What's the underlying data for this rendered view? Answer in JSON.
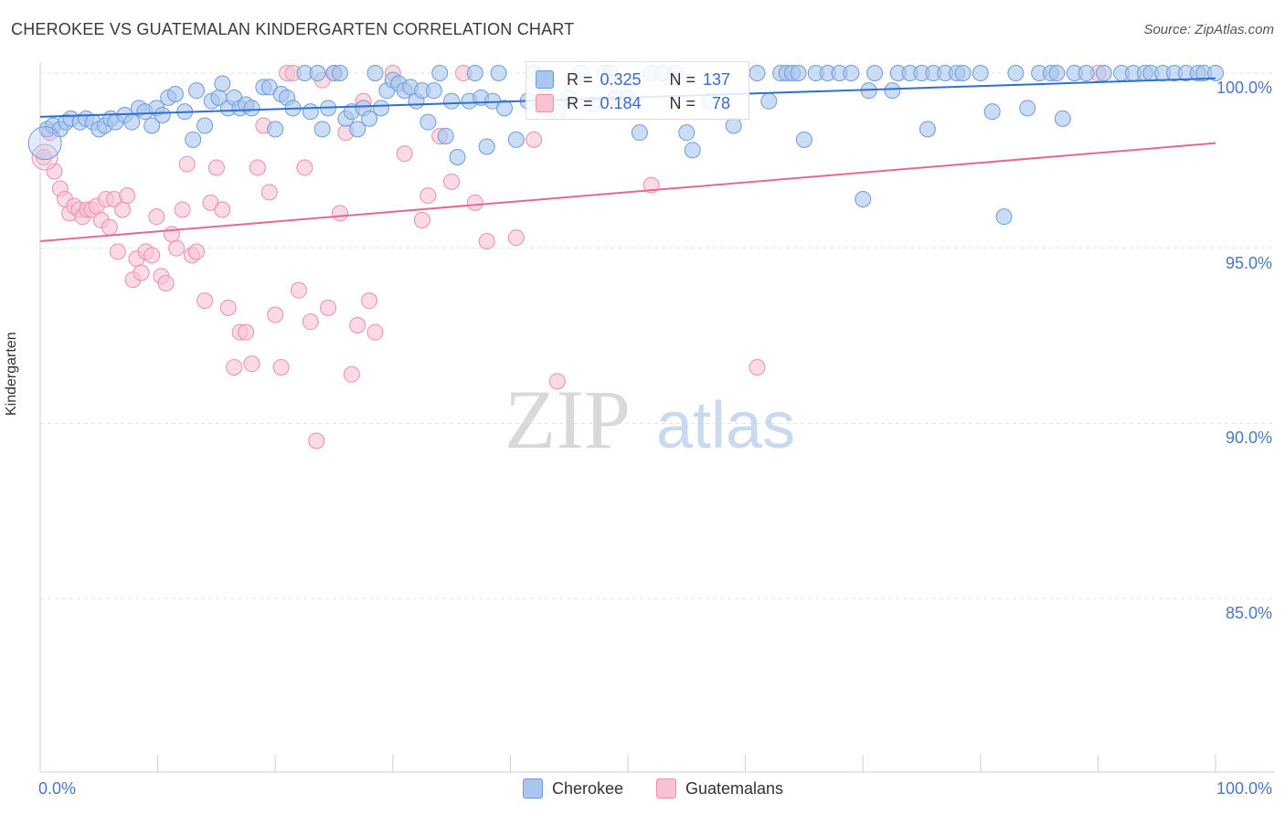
{
  "header": {
    "title": "CHEROKEE VS GUATEMALAN KINDERGARTEN CORRELATION CHART",
    "source": "Source: ZipAtlas.com"
  },
  "watermark": {
    "zip": "ZIP",
    "atlas": "atlas"
  },
  "legend_stats": {
    "cherokee": {
      "r_label": "R =",
      "r_value": "0.325",
      "n_label": "N =",
      "n_value": "137"
    },
    "guatemalans": {
      "r_label": "R =",
      "r_value": "0.184",
      "n_label": "N =",
      "n_value": "78"
    }
  },
  "bottom_legend": {
    "cherokee": "Cherokee",
    "guatemalans": "Guatemalans"
  },
  "colors": {
    "cherokee_fill": "#a9c6ef",
    "cherokee_stroke": "#6f9bd8",
    "cherokee_line": "#2f6fd1",
    "guatemalans_fill": "#f7c3d3",
    "guatemalans_stroke": "#eb8fae",
    "guatemalans_line": "#e26a92",
    "tick_text": "#4a78c2"
  },
  "chart_data": {
    "type": "scatter",
    "title": "CHEROKEE VS GUATEMALAN KINDERGARTEN CORRELATION CHART",
    "xlabel": "",
    "ylabel": "Kindergarten",
    "xlim": [
      0,
      100
    ],
    "ylim": [
      80.5,
      100.3
    ],
    "x_tick_labels": [
      "0.0%",
      "100.0%"
    ],
    "y_ticks": [
      85,
      90,
      95,
      100
    ],
    "y_tick_labels": [
      "85.0%",
      "90.0%",
      "95.0%",
      "100.0%"
    ],
    "grid": true,
    "legend_position": "top-center",
    "series": [
      {
        "name": "Cherokee",
        "r": 0.325,
        "n": 137,
        "trend": {
          "x": [
            0,
            100
          ],
          "y": [
            98.75,
            99.85
          ]
        },
        "points": [
          [
            0.6,
            98.4
          ],
          [
            1.1,
            98.5
          ],
          [
            1.7,
            98.4
          ],
          [
            2.2,
            98.6
          ],
          [
            2.6,
            98.7
          ],
          [
            3.4,
            98.6
          ],
          [
            3.9,
            98.7
          ],
          [
            4.5,
            98.6
          ],
          [
            5.0,
            98.4
          ],
          [
            5.5,
            98.5
          ],
          [
            6.0,
            98.7
          ],
          [
            6.4,
            98.6
          ],
          [
            7.2,
            98.8
          ],
          [
            7.8,
            98.6
          ],
          [
            8.4,
            99.0
          ],
          [
            8.9,
            98.9
          ],
          [
            9.5,
            98.5
          ],
          [
            9.9,
            99.0
          ],
          [
            10.4,
            98.8
          ],
          [
            10.9,
            99.3
          ],
          [
            11.5,
            99.4
          ],
          [
            12.3,
            98.9
          ],
          [
            13.0,
            98.1
          ],
          [
            13.3,
            99.5
          ],
          [
            14.0,
            98.5
          ],
          [
            14.6,
            99.2
          ],
          [
            15.2,
            99.3
          ],
          [
            15.5,
            99.7
          ],
          [
            16.0,
            99.0
          ],
          [
            16.5,
            99.3
          ],
          [
            17.0,
            99.0
          ],
          [
            17.5,
            99.1
          ],
          [
            18.0,
            99.0
          ],
          [
            19.0,
            99.6
          ],
          [
            19.5,
            99.6
          ],
          [
            20.0,
            98.4
          ],
          [
            20.5,
            99.4
          ],
          [
            21.0,
            99.3
          ],
          [
            21.5,
            99.0
          ],
          [
            22.5,
            100.0
          ],
          [
            23.0,
            98.9
          ],
          [
            23.6,
            100.0
          ],
          [
            24.0,
            98.4
          ],
          [
            24.5,
            99.0
          ],
          [
            25.0,
            100.0
          ],
          [
            25.5,
            100.0
          ],
          [
            26.0,
            98.7
          ],
          [
            26.5,
            98.9
          ],
          [
            27.0,
            98.4
          ],
          [
            27.5,
            99.0
          ],
          [
            28.0,
            98.7
          ],
          [
            28.5,
            100.0
          ],
          [
            29.0,
            99.0
          ],
          [
            29.5,
            99.5
          ],
          [
            30.0,
            99.8
          ],
          [
            30.5,
            99.7
          ],
          [
            31.0,
            99.5
          ],
          [
            31.5,
            99.6
          ],
          [
            32.0,
            99.2
          ],
          [
            32.5,
            99.5
          ],
          [
            33.0,
            98.6
          ],
          [
            33.5,
            99.5
          ],
          [
            34.0,
            100.0
          ],
          [
            34.5,
            98.2
          ],
          [
            35.0,
            99.2
          ],
          [
            35.5,
            97.6
          ],
          [
            36.5,
            99.2
          ],
          [
            37.0,
            100.0
          ],
          [
            37.5,
            99.3
          ],
          [
            38.0,
            97.9
          ],
          [
            38.5,
            99.2
          ],
          [
            39.0,
            100.0
          ],
          [
            39.5,
            99.0
          ],
          [
            40.5,
            98.1
          ],
          [
            41.5,
            99.2
          ],
          [
            42.0,
            100.0
          ],
          [
            43.0,
            99.3
          ],
          [
            44.0,
            98.9
          ],
          [
            45.0,
            99.3
          ],
          [
            46.0,
            100.0
          ],
          [
            47.0,
            99.1
          ],
          [
            48.0,
            100.0
          ],
          [
            48.5,
            100.0
          ],
          [
            49.0,
            99.3
          ],
          [
            50.0,
            99.3
          ],
          [
            51.0,
            98.3
          ],
          [
            52.0,
            100.0
          ],
          [
            53.0,
            100.0
          ],
          [
            54.0,
            100.0
          ],
          [
            55.0,
            98.3
          ],
          [
            55.5,
            97.8
          ],
          [
            57.0,
            99.2
          ],
          [
            59.0,
            98.5
          ],
          [
            61.0,
            100.0
          ],
          [
            62.0,
            99.2
          ],
          [
            63.0,
            100.0
          ],
          [
            63.5,
            100.0
          ],
          [
            64.0,
            100.0
          ],
          [
            64.5,
            100.0
          ],
          [
            65.0,
            98.1
          ],
          [
            66.0,
            100.0
          ],
          [
            67.0,
            100.0
          ],
          [
            68.0,
            100.0
          ],
          [
            69.0,
            100.0
          ],
          [
            70.0,
            96.4
          ],
          [
            70.5,
            99.5
          ],
          [
            71.0,
            100.0
          ],
          [
            72.5,
            99.5
          ],
          [
            73.0,
            100.0
          ],
          [
            74.0,
            100.0
          ],
          [
            75.0,
            100.0
          ],
          [
            75.5,
            98.4
          ],
          [
            76.0,
            100.0
          ],
          [
            77.0,
            100.0
          ],
          [
            78.0,
            100.0
          ],
          [
            78.5,
            100.0
          ],
          [
            80.0,
            100.0
          ],
          [
            81.0,
            98.9
          ],
          [
            82.0,
            95.9
          ],
          [
            83.0,
            100.0
          ],
          [
            84.0,
            99.0
          ],
          [
            85.0,
            100.0
          ],
          [
            86.0,
            100.0
          ],
          [
            86.5,
            100.0
          ],
          [
            87.0,
            98.7
          ],
          [
            88.0,
            100.0
          ],
          [
            89.0,
            100.0
          ],
          [
            90.5,
            100.0
          ],
          [
            92.0,
            100.0
          ],
          [
            93.0,
            100.0
          ],
          [
            94.0,
            100.0
          ],
          [
            94.5,
            100.0
          ],
          [
            95.5,
            100.0
          ],
          [
            96.5,
            100.0
          ],
          [
            97.5,
            100.0
          ],
          [
            98.5,
            100.0
          ],
          [
            99.0,
            100.0
          ],
          [
            100.0,
            100.0
          ]
        ]
      },
      {
        "name": "Guatemalans",
        "r": 0.184,
        "n": 78,
        "trend": {
          "x": [
            0,
            100
          ],
          "y": [
            95.2,
            98.0
          ]
        },
        "points": [
          [
            0.3,
            97.6
          ],
          [
            0.8,
            98.3
          ],
          [
            1.2,
            97.2
          ],
          [
            1.7,
            96.7
          ],
          [
            2.1,
            96.4
          ],
          [
            2.5,
            96.0
          ],
          [
            2.9,
            96.2
          ],
          [
            3.3,
            96.1
          ],
          [
            3.6,
            95.9
          ],
          [
            4.0,
            96.1
          ],
          [
            4.4,
            96.1
          ],
          [
            4.8,
            96.2
          ],
          [
            5.2,
            95.8
          ],
          [
            5.6,
            96.4
          ],
          [
            5.9,
            95.6
          ],
          [
            6.3,
            96.4
          ],
          [
            6.6,
            94.9
          ],
          [
            7.0,
            96.1
          ],
          [
            7.4,
            96.5
          ],
          [
            7.9,
            94.1
          ],
          [
            8.2,
            94.7
          ],
          [
            8.6,
            94.3
          ],
          [
            9.0,
            94.9
          ],
          [
            9.5,
            94.8
          ],
          [
            9.9,
            95.9
          ],
          [
            10.3,
            94.2
          ],
          [
            10.7,
            94.0
          ],
          [
            11.2,
            95.4
          ],
          [
            11.6,
            95.0
          ],
          [
            12.1,
            96.1
          ],
          [
            12.5,
            97.4
          ],
          [
            12.9,
            94.8
          ],
          [
            13.3,
            94.9
          ],
          [
            14.0,
            93.5
          ],
          [
            14.5,
            96.3
          ],
          [
            15.0,
            97.3
          ],
          [
            15.5,
            96.1
          ],
          [
            16.0,
            93.3
          ],
          [
            16.5,
            91.6
          ],
          [
            17.0,
            92.6
          ],
          [
            17.5,
            92.6
          ],
          [
            18.0,
            91.7
          ],
          [
            18.5,
            97.3
          ],
          [
            19.0,
            98.5
          ],
          [
            19.5,
            96.6
          ],
          [
            20.0,
            93.1
          ],
          [
            20.5,
            91.6
          ],
          [
            21.0,
            100.0
          ],
          [
            21.5,
            100.0
          ],
          [
            22.0,
            93.8
          ],
          [
            22.5,
            97.3
          ],
          [
            23.0,
            92.9
          ],
          [
            23.5,
            89.5
          ],
          [
            24.0,
            99.8
          ],
          [
            24.5,
            93.3
          ],
          [
            25.0,
            100.0
          ],
          [
            25.5,
            96.0
          ],
          [
            26.0,
            98.3
          ],
          [
            26.5,
            91.4
          ],
          [
            27.0,
            92.8
          ],
          [
            27.5,
            99.2
          ],
          [
            28.0,
            93.5
          ],
          [
            28.5,
            92.6
          ],
          [
            30.0,
            100.0
          ],
          [
            31.0,
            97.7
          ],
          [
            32.5,
            95.8
          ],
          [
            33.0,
            96.5
          ],
          [
            34.0,
            98.2
          ],
          [
            35.0,
            96.9
          ],
          [
            36.0,
            100.0
          ],
          [
            37.0,
            96.3
          ],
          [
            38.0,
            95.2
          ],
          [
            40.5,
            95.3
          ],
          [
            42.0,
            98.1
          ],
          [
            44.0,
            91.2
          ],
          [
            52.0,
            96.8
          ],
          [
            61.0,
            91.6
          ],
          [
            90.0,
            100.0
          ]
        ]
      }
    ]
  }
}
